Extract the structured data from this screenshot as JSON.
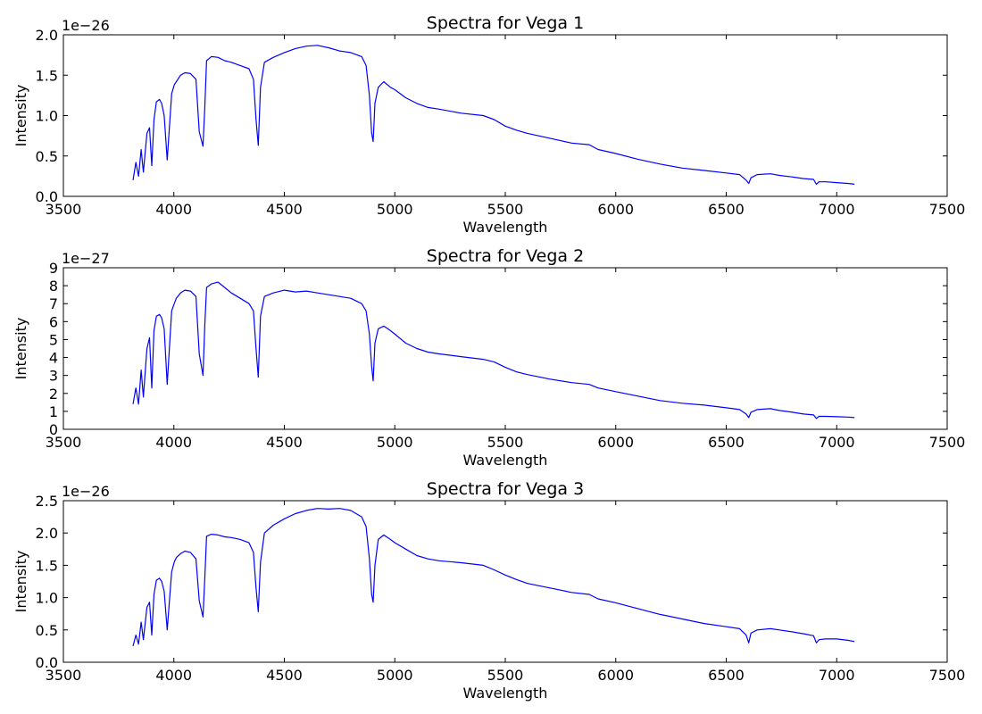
{
  "chart_data": [
    {
      "type": "line",
      "title": "Spectra for Vega 1",
      "xlabel": "Wavelength",
      "ylabel": "Intensity",
      "offset_text": "1e−26",
      "xlim": [
        3500,
        7500
      ],
      "ylim": [
        0.0,
        2.0
      ],
      "xticks": [
        "3500",
        "4000",
        "4500",
        "5000",
        "5500",
        "6000",
        "6500",
        "7000",
        "7500"
      ],
      "yticks": [
        "0.0",
        "0.5",
        "1.0",
        "1.5",
        "2.0"
      ],
      "grid": false,
      "line_color": "#0000ff",
      "series": [
        {
          "x": [
            3815,
            3828,
            3840,
            3852,
            3862,
            3878,
            3890,
            3900,
            3910,
            3921,
            3935,
            3945,
            3956,
            3970,
            3990,
            4002,
            4011,
            4030,
            4050,
            4075,
            4100,
            4115,
            4132,
            4140,
            4148,
            4170,
            4200,
            4230,
            4260,
            4300,
            4340,
            4360,
            4372,
            4382,
            4392,
            4410,
            4450,
            4500,
            4550,
            4600,
            4650,
            4700,
            4750,
            4800,
            4850,
            4870,
            4885,
            4895,
            4902,
            4910,
            4925,
            4950,
            4980,
            5000,
            5050,
            5100,
            5150,
            5200,
            5300,
            5400,
            5450,
            5500,
            5550,
            5600,
            5700,
            5800,
            5880,
            5920,
            6000,
            6100,
            6200,
            6300,
            6400,
            6500,
            6560,
            6590,
            6602,
            6612,
            6640,
            6700,
            6740,
            6800,
            6850,
            6895,
            6908,
            6920,
            6950,
            7000,
            7050,
            7080
          ],
          "y": [
            0.2,
            0.42,
            0.25,
            0.58,
            0.3,
            0.78,
            0.85,
            0.38,
            0.95,
            1.17,
            1.2,
            1.15,
            1.0,
            0.45,
            1.27,
            1.38,
            1.42,
            1.5,
            1.53,
            1.52,
            1.45,
            0.8,
            0.62,
            1.1,
            1.68,
            1.73,
            1.72,
            1.68,
            1.66,
            1.62,
            1.58,
            1.45,
            0.95,
            0.63,
            1.35,
            1.66,
            1.72,
            1.78,
            1.83,
            1.86,
            1.87,
            1.84,
            1.8,
            1.78,
            1.73,
            1.62,
            1.25,
            0.78,
            0.68,
            1.15,
            1.35,
            1.42,
            1.35,
            1.32,
            1.22,
            1.15,
            1.1,
            1.08,
            1.03,
            1.0,
            0.95,
            0.87,
            0.82,
            0.78,
            0.72,
            0.66,
            0.64,
            0.58,
            0.53,
            0.46,
            0.4,
            0.35,
            0.32,
            0.29,
            0.27,
            0.2,
            0.16,
            0.23,
            0.27,
            0.28,
            0.26,
            0.24,
            0.22,
            0.21,
            0.15,
            0.18,
            0.18,
            0.17,
            0.16,
            0.15
          ]
        }
      ]
    },
    {
      "type": "line",
      "title": "Spectra for Vega 2",
      "xlabel": "Wavelength",
      "ylabel": "Intensity",
      "offset_text": "1e−27",
      "xlim": [
        3500,
        7500
      ],
      "ylim": [
        0,
        9
      ],
      "xticks": [
        "3500",
        "4000",
        "4500",
        "5000",
        "5500",
        "6000",
        "6500",
        "7000",
        "7500"
      ],
      "yticks": [
        "0",
        "1",
        "2",
        "3",
        "4",
        "5",
        "6",
        "7",
        "8",
        "9"
      ],
      "grid": false,
      "line_color": "#0000ff",
      "series": [
        {
          "x": [
            3815,
            3828,
            3840,
            3852,
            3862,
            3878,
            3890,
            3900,
            3910,
            3921,
            3935,
            3945,
            3956,
            3970,
            3990,
            4002,
            4011,
            4030,
            4050,
            4075,
            4100,
            4115,
            4132,
            4140,
            4148,
            4170,
            4200,
            4230,
            4260,
            4300,
            4340,
            4360,
            4372,
            4382,
            4392,
            4410,
            4450,
            4500,
            4550,
            4600,
            4650,
            4700,
            4750,
            4800,
            4850,
            4870,
            4885,
            4895,
            4902,
            4910,
            4925,
            4950,
            4980,
            5000,
            5050,
            5100,
            5150,
            5200,
            5300,
            5400,
            5450,
            5500,
            5550,
            5600,
            5700,
            5800,
            5880,
            5920,
            6000,
            6100,
            6200,
            6300,
            6400,
            6500,
            6560,
            6590,
            6602,
            6612,
            6640,
            6700,
            6740,
            6800,
            6850,
            6895,
            6908,
            6920,
            6950,
            7000,
            7050,
            7080
          ],
          "y": [
            1.4,
            2.3,
            1.4,
            3.3,
            1.8,
            4.5,
            5.1,
            2.3,
            5.5,
            6.3,
            6.4,
            6.2,
            5.6,
            2.5,
            6.6,
            7.0,
            7.3,
            7.6,
            7.75,
            7.7,
            7.4,
            4.2,
            3.0,
            5.8,
            7.9,
            8.1,
            8.2,
            7.9,
            7.6,
            7.3,
            7.0,
            6.6,
            4.5,
            2.9,
            6.3,
            7.4,
            7.6,
            7.75,
            7.65,
            7.7,
            7.6,
            7.5,
            7.4,
            7.3,
            7.0,
            6.6,
            5.3,
            3.5,
            2.7,
            4.8,
            5.6,
            5.75,
            5.5,
            5.3,
            4.8,
            4.5,
            4.3,
            4.2,
            4.05,
            3.9,
            3.75,
            3.45,
            3.2,
            3.05,
            2.8,
            2.6,
            2.5,
            2.3,
            2.1,
            1.85,
            1.6,
            1.45,
            1.35,
            1.2,
            1.1,
            0.85,
            0.65,
            0.95,
            1.1,
            1.15,
            1.05,
            0.95,
            0.85,
            0.8,
            0.6,
            0.72,
            0.72,
            0.7,
            0.68,
            0.65
          ]
        }
      ]
    },
    {
      "type": "line",
      "title": "Spectra for Vega 3",
      "xlabel": "Wavelength",
      "ylabel": "Intensity",
      "offset_text": "1e−26",
      "xlim": [
        3500,
        7500
      ],
      "ylim": [
        0.0,
        2.5
      ],
      "xticks": [
        "3500",
        "4000",
        "4500",
        "5000",
        "5500",
        "6000",
        "6500",
        "7000",
        "7500"
      ],
      "yticks": [
        "0.0",
        "0.5",
        "1.0",
        "1.5",
        "2.0",
        "2.5"
      ],
      "grid": false,
      "line_color": "#0000ff",
      "series": [
        {
          "x": [
            3815,
            3828,
            3840,
            3852,
            3862,
            3878,
            3890,
            3900,
            3910,
            3921,
            3935,
            3945,
            3956,
            3970,
            3990,
            4002,
            4011,
            4030,
            4050,
            4075,
            4100,
            4115,
            4132,
            4140,
            4148,
            4170,
            4200,
            4230,
            4260,
            4300,
            4340,
            4360,
            4372,
            4382,
            4392,
            4410,
            4450,
            4500,
            4550,
            4600,
            4650,
            4700,
            4750,
            4800,
            4850,
            4870,
            4885,
            4895,
            4902,
            4910,
            4925,
            4950,
            4980,
            5000,
            5050,
            5100,
            5150,
            5200,
            5300,
            5400,
            5450,
            5500,
            5550,
            5600,
            5700,
            5800,
            5880,
            5920,
            6000,
            6100,
            6200,
            6300,
            6400,
            6500,
            6560,
            6590,
            6602,
            6612,
            6640,
            6700,
            6740,
            6800,
            6850,
            6895,
            6908,
            6920,
            6950,
            7000,
            7050,
            7080
          ],
          "y": [
            0.25,
            0.42,
            0.28,
            0.62,
            0.35,
            0.85,
            0.93,
            0.42,
            1.05,
            1.27,
            1.3,
            1.25,
            1.1,
            0.5,
            1.4,
            1.55,
            1.62,
            1.68,
            1.72,
            1.7,
            1.6,
            0.95,
            0.7,
            1.3,
            1.95,
            1.98,
            1.97,
            1.94,
            1.93,
            1.9,
            1.85,
            1.7,
            1.15,
            0.78,
            1.55,
            2.0,
            2.12,
            2.22,
            2.3,
            2.35,
            2.38,
            2.37,
            2.38,
            2.35,
            2.25,
            2.1,
            1.6,
            1.05,
            0.93,
            1.5,
            1.9,
            1.97,
            1.9,
            1.85,
            1.75,
            1.65,
            1.6,
            1.57,
            1.54,
            1.5,
            1.43,
            1.35,
            1.28,
            1.22,
            1.15,
            1.08,
            1.05,
            0.98,
            0.92,
            0.83,
            0.74,
            0.67,
            0.6,
            0.55,
            0.52,
            0.42,
            0.3,
            0.45,
            0.5,
            0.52,
            0.5,
            0.47,
            0.44,
            0.41,
            0.3,
            0.35,
            0.36,
            0.36,
            0.34,
            0.32
          ]
        }
      ]
    }
  ]
}
